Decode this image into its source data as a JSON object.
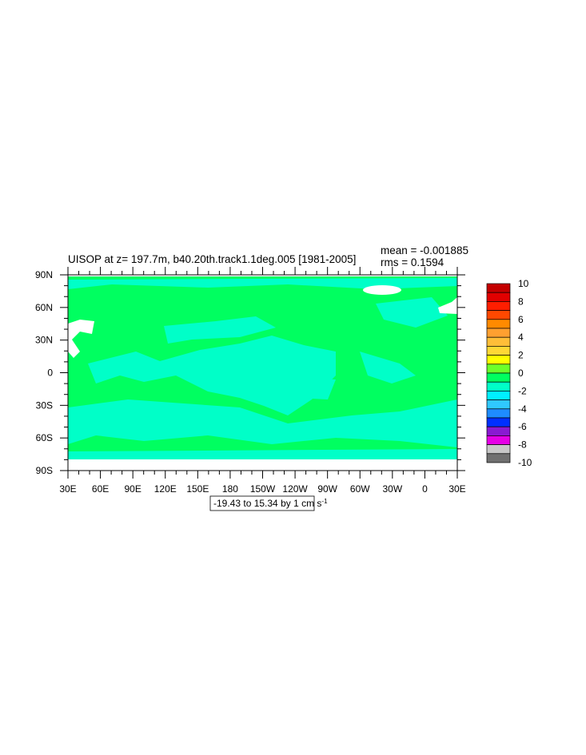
{
  "chart_data": {
    "type": "map",
    "title": "UISOP at z= 197.7m, b40.20th.track1.1deg.005 [1981-2005]",
    "stats": [
      "mean = -0.001885",
      "rms = 0.1594"
    ],
    "xlim": [
      30,
      390
    ],
    "xticks": [
      {
        "value": 30,
        "label": "30E"
      },
      {
        "value": 60,
        "label": "60E"
      },
      {
        "value": 90,
        "label": "90E"
      },
      {
        "value": 120,
        "label": "120E"
      },
      {
        "value": 150,
        "label": "150E"
      },
      {
        "value": 180,
        "label": "180"
      },
      {
        "value": 210,
        "label": "150W"
      },
      {
        "value": 240,
        "label": "120W"
      },
      {
        "value": 270,
        "label": "90W"
      },
      {
        "value": 300,
        "label": "60W"
      },
      {
        "value": 330,
        "label": "30W"
      },
      {
        "value": 360,
        "label": "0"
      },
      {
        "value": 390,
        "label": "30E"
      }
    ],
    "ylim": [
      -90,
      90
    ],
    "yticks": [
      {
        "value": 90,
        "label": "90N"
      },
      {
        "value": 60,
        "label": "60N"
      },
      {
        "value": 30,
        "label": "30N"
      },
      0,
      {
        "value": -30,
        "label": "30S"
      },
      {
        "value": -60,
        "label": "60S"
      },
      {
        "value": -90,
        "label": "90S"
      }
    ],
    "colorbar": {
      "levels": [
        10,
        8,
        6,
        4,
        2,
        0,
        -2,
        -4,
        -6,
        -8,
        -10
      ],
      "colors": [
        "#c40000",
        "#e10000",
        "#ff1e00",
        "#ff4800",
        "#ff8a00",
        "#ffa030",
        "#ffbe38",
        "#ffd835",
        "#ffff00",
        "#6cff2a",
        "#00ff60",
        "#00ffc8",
        "#00f0ff",
        "#30c8ff",
        "#1e8cff",
        "#0030ff",
        "#8a1ad2",
        "#e600e6",
        "#c8c8c8",
        "#707070"
      ]
    },
    "info_label": {
      "text": "-19.43 to 15.34 by 1 cm s",
      "superscript": "-1"
    }
  }
}
